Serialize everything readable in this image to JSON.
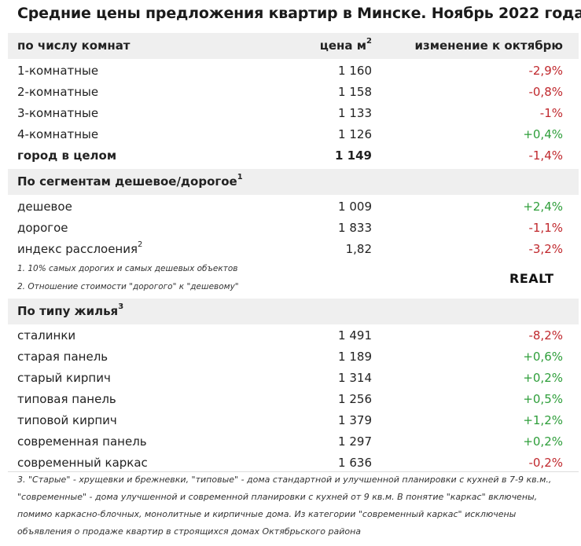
{
  "title": "Средние цены предложения квартир в Минске. Ноябрь 2022 года",
  "header": {
    "col1": "по числу комнат",
    "col2": "цена м",
    "col2_sup": "2",
    "col3": "изменение к октябрю"
  },
  "rooms": [
    {
      "name": "1-комнатные",
      "price": "1 160",
      "change": "-2,9%"
    },
    {
      "name": "2-комнатные",
      "price": "1 158",
      "change": "-0,8%"
    },
    {
      "name": "3-комнатные",
      "price": "1 133",
      "change": "-1%"
    },
    {
      "name": "4-комнатные",
      "price": "1 126",
      "change": "+0,4%"
    },
    {
      "name": "город в целом",
      "price": "1 149",
      "change": "-1,4%"
    }
  ],
  "segments": {
    "heading": "По сегментам дешевое/дорогое",
    "heading_sup": "1",
    "rows": [
      {
        "name": "дешевое",
        "price": "1 009",
        "change": "+2,4%"
      },
      {
        "name": "дорогое",
        "price": "1 833",
        "change": "-1,1%"
      },
      {
        "name": "индекс расслоения",
        "name_sup": "2",
        "price": "1,82",
        "change": "-3,2%"
      }
    ],
    "note1": "1. 10% самых дорогих и самых дешевых объектов",
    "note2": "2. Отношение стоимости \"дорогого\" к \"дешевому\""
  },
  "logo": "REALT",
  "housing": {
    "heading": "По типу жилья",
    "heading_sup": "3",
    "rows": [
      {
        "name": "сталинки",
        "price": "1 491",
        "change": "-8,2%"
      },
      {
        "name": "старая панель",
        "price": "1 189",
        "change": "+0,6%"
      },
      {
        "name": "старый кирпич",
        "price": "1 314",
        "change": "+0,2%"
      },
      {
        "name": "типовая панель",
        "price": "1 256",
        "change": "+0,5%"
      },
      {
        "name": "типовой кирпич",
        "price": "1 379",
        "change": "+1,2%"
      },
      {
        "name": "современная панель",
        "price": "1 297",
        "change": "+0,2%"
      },
      {
        "name": "современный каркас",
        "price": "1 636",
        "change": "-0,2%"
      }
    ]
  },
  "footer": [
    "3. \"Старые\" - хрущевки и брежневки, \"типовые\" - дома стандартной и улучшенной планировки с кухней в 7-9 кв.м.,",
    "\"современные\" - дома улучшенной и современной планировки с кухней от 9 кв.м. В понятие \"каркас\" включены,",
    "помимо каркасно-блочных, монолитные и кирпичные дома. Из категории \"современный каркас\" исключены",
    "объявления о продаже квартир в строящихся домах Октябрьского района"
  ],
  "colors": {
    "negative": "#c0282d",
    "positive": "#2e9e3a",
    "band": "#efefef"
  }
}
